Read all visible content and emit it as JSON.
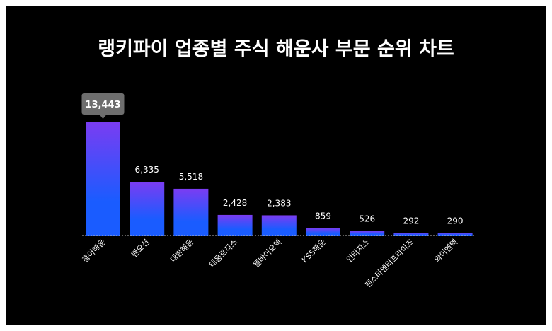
{
  "chart_data": {
    "type": "bar",
    "title": "랭키파이 업종별 주식 해운사 부문 순위 차트",
    "categories": [
      "흥아해운",
      "팬오션",
      "대한해운",
      "태웅로직스",
      "웰바이오텍",
      "KSS해운",
      "인터지스",
      "팬스타엔터프라이즈",
      "와이엔텍"
    ],
    "values": [
      13443,
      6335,
      5518,
      2428,
      2383,
      859,
      526,
      292,
      290
    ],
    "value_labels": [
      "13,443",
      "6,335",
      "5,518",
      "2,428",
      "2,383",
      "859",
      "526",
      "292",
      "290"
    ],
    "ylim": [
      0,
      13443
    ],
    "highlight_index": 0,
    "grid": false,
    "legend": "none",
    "colors": {
      "background": "#000000",
      "bar_top": "#7b3cf2",
      "bar_bottom": "#1a5cff",
      "tooltip": "#6e6e6e",
      "text": "#ffffff",
      "baseline": "#bbbbbb"
    }
  }
}
